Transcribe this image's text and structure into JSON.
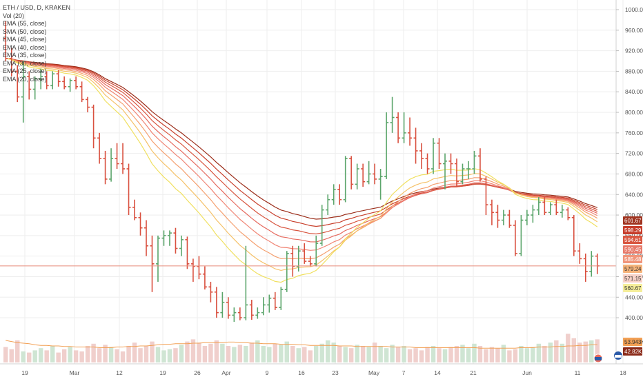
{
  "title": "ETH / USD, D, KRAKEN",
  "legend": [
    "Vol (20)",
    "EMA (55, close)",
    "SMA (50, close)",
    "EMA (45, close)",
    "EMA (40, close)",
    "EMA (35, close)",
    "EMA (30, close)",
    "EMA (25, close)",
    "EMA (20, close)"
  ],
  "colors": {
    "up": "#5ba56b",
    "down": "#d9503f",
    "vol_up": "#cfe5d3",
    "vol_down": "#f0cfcc",
    "vol_ma": "#f2a054",
    "price_line": "#e88a7a",
    "axis_text": "#555555",
    "grid": "#eeeeee"
  },
  "chart_data": {
    "type": "candlestick",
    "y_axis": {
      "min": 380,
      "max": 1000,
      "ticks": [
        400,
        440,
        480,
        520,
        560,
        600,
        640,
        680,
        720,
        760,
        800,
        840,
        880,
        920,
        960,
        1000
      ]
    },
    "x_axis": {
      "labels": [
        "19",
        "Mar",
        "12",
        "19",
        "26",
        "Apr",
        "9",
        "16",
        "23",
        "May",
        "7",
        "14",
        "21",
        "Jun",
        "11",
        "18"
      ]
    },
    "candles": [
      [
        944,
        978,
        900,
        905
      ],
      [
        905,
        925,
        870,
        880
      ],
      [
        880,
        892,
        820,
        830
      ],
      [
        830,
        900,
        780,
        870
      ],
      [
        870,
        880,
        825,
        845
      ],
      [
        845,
        870,
        825,
        865
      ],
      [
        865,
        885,
        845,
        870
      ],
      [
        870,
        880,
        845,
        852
      ],
      [
        852,
        880,
        845,
        875
      ],
      [
        875,
        882,
        850,
        860
      ],
      [
        860,
        870,
        845,
        850
      ],
      [
        850,
        866,
        840,
        862
      ],
      [
        862,
        870,
        845,
        850
      ],
      [
        850,
        860,
        820,
        825
      ],
      [
        825,
        830,
        800,
        810
      ],
      [
        810,
        815,
        730,
        750
      ],
      [
        750,
        760,
        700,
        710
      ],
      [
        710,
        725,
        660,
        670
      ],
      [
        670,
        730,
        665,
        710
      ],
      [
        710,
        740,
        690,
        700
      ],
      [
        700,
        740,
        680,
        690
      ],
      [
        690,
        700,
        600,
        615
      ],
      [
        615,
        630,
        590,
        595
      ],
      [
        595,
        605,
        560,
        575
      ],
      [
        575,
        590,
        520,
        540
      ],
      [
        540,
        560,
        450,
        505
      ],
      [
        505,
        560,
        470,
        555
      ],
      [
        555,
        570,
        540,
        560
      ],
      [
        560,
        570,
        540,
        565
      ],
      [
        565,
        575,
        525,
        535
      ],
      [
        535,
        560,
        520,
        552
      ],
      [
        552,
        558,
        495,
        505
      ],
      [
        505,
        515,
        470,
        500
      ],
      [
        500,
        520,
        475,
        485
      ],
      [
        485,
        500,
        455,
        460
      ],
      [
        460,
        470,
        430,
        450
      ],
      [
        450,
        460,
        400,
        410
      ],
      [
        410,
        450,
        400,
        430
      ],
      [
        430,
        440,
        398,
        405
      ],
      [
        405,
        420,
        392,
        410
      ],
      [
        410,
        420,
        395,
        400
      ],
      [
        400,
        540,
        395,
        425
      ],
      [
        425,
        435,
        396,
        405
      ],
      [
        405,
        420,
        398,
        410
      ],
      [
        410,
        440,
        405,
        425
      ],
      [
        425,
        445,
        410,
        438
      ],
      [
        438,
        450,
        415,
        420
      ],
      [
        420,
        460,
        415,
        455
      ],
      [
        455,
        530,
        450,
        525
      ],
      [
        525,
        540,
        480,
        500
      ],
      [
        500,
        540,
        490,
        530
      ],
      [
        530,
        545,
        505,
        510
      ],
      [
        510,
        520,
        500,
        505
      ],
      [
        505,
        560,
        500,
        545
      ],
      [
        545,
        620,
        540,
        610
      ],
      [
        610,
        640,
        600,
        630
      ],
      [
        630,
        660,
        620,
        650
      ],
      [
        650,
        660,
        620,
        630
      ],
      [
        630,
        715,
        625,
        710
      ],
      [
        710,
        715,
        650,
        660
      ],
      [
        660,
        700,
        650,
        690
      ],
      [
        690,
        700,
        655,
        665
      ],
      [
        665,
        705,
        660,
        680
      ],
      [
        680,
        700,
        660,
        670
      ],
      [
        670,
        690,
        630,
        675
      ],
      [
        675,
        800,
        670,
        780
      ],
      [
        780,
        830,
        760,
        790
      ],
      [
        790,
        800,
        740,
        750
      ],
      [
        750,
        800,
        740,
        760
      ],
      [
        760,
        790,
        735,
        750
      ],
      [
        750,
        770,
        700,
        725
      ],
      [
        725,
        740,
        690,
        710
      ],
      [
        710,
        720,
        680,
        690
      ],
      [
        690,
        750,
        680,
        740
      ],
      [
        740,
        750,
        690,
        700
      ],
      [
        700,
        720,
        650,
        705
      ],
      [
        705,
        720,
        680,
        700
      ],
      [
        700,
        710,
        655,
        665
      ],
      [
        665,
        700,
        660,
        690
      ],
      [
        690,
        705,
        670,
        690
      ],
      [
        690,
        725,
        680,
        715
      ],
      [
        715,
        730,
        665,
        670
      ],
      [
        670,
        675,
        600,
        620
      ],
      [
        620,
        630,
        580,
        605
      ],
      [
        605,
        620,
        575,
        590
      ],
      [
        590,
        610,
        580,
        600
      ],
      [
        600,
        610,
        575,
        580
      ],
      [
        580,
        590,
        520,
        525
      ],
      [
        525,
        600,
        520,
        590
      ],
      [
        590,
        610,
        580,
        600
      ],
      [
        600,
        620,
        585,
        610
      ],
      [
        610,
        635,
        600,
        625
      ],
      [
        625,
        635,
        600,
        605
      ],
      [
        605,
        625,
        600,
        620
      ],
      [
        620,
        630,
        600,
        605
      ],
      [
        605,
        620,
        595,
        610
      ],
      [
        610,
        615,
        590,
        595
      ],
      [
        595,
        600,
        520,
        530
      ],
      [
        530,
        545,
        505,
        515
      ],
      [
        515,
        525,
        470,
        490
      ],
      [
        490,
        530,
        480,
        520
      ],
      [
        520,
        525,
        485,
        501
      ]
    ],
    "volume": {
      "ymax": 100,
      "values": [
        28,
        24,
        40,
        20,
        18,
        22,
        26,
        22,
        30,
        18,
        24,
        28,
        22,
        20,
        30,
        34,
        26,
        32,
        28,
        24,
        20,
        30,
        36,
        26,
        30,
        38,
        28,
        22,
        24,
        26,
        32,
        38,
        42,
        36,
        30,
        34,
        40,
        34,
        30,
        28,
        32,
        30,
        36,
        40,
        30,
        28,
        34,
        32,
        38,
        30,
        26,
        28,
        22,
        30,
        34,
        40,
        36,
        30,
        28,
        26,
        32,
        30,
        28,
        36,
        30,
        26,
        32,
        28,
        30,
        24,
        26,
        22,
        28,
        30,
        26,
        24,
        28,
        30,
        32,
        26,
        34,
        30,
        24,
        28,
        26,
        32,
        22,
        24,
        30,
        26,
        28,
        34,
        30,
        36,
        40,
        34,
        52,
        44,
        36,
        38,
        40,
        42
      ],
      "ma": [
        40,
        38,
        36,
        35,
        34,
        32,
        31,
        31,
        30,
        30,
        29,
        29,
        28,
        28,
        28,
        28,
        27,
        27,
        27,
        28,
        28,
        29,
        29,
        30,
        30,
        31,
        32,
        33,
        33,
        34,
        34,
        34,
        35,
        35,
        36,
        36,
        36,
        36,
        37,
        37,
        36,
        36,
        35,
        35,
        34,
        34,
        34,
        33,
        33,
        33,
        32,
        32,
        31,
        31,
        31,
        31,
        31,
        30,
        30,
        30,
        29,
        29,
        29,
        29,
        29,
        29,
        28,
        28,
        28,
        28,
        27,
        27,
        27,
        27,
        27,
        27,
        27,
        27,
        27,
        27,
        27,
        26,
        26,
        26,
        26,
        26,
        26,
        26,
        27,
        27,
        27,
        28,
        28,
        28,
        29,
        29,
        30,
        30,
        31,
        31,
        32,
        32
      ]
    },
    "ema_series": [
      {
        "period": 20,
        "color": "#f0e060"
      },
      {
        "period": 25,
        "color": "#f5c168"
      },
      {
        "period": 30,
        "color": "#f5a070"
      },
      {
        "period": 35,
        "color": "#f08575"
      },
      {
        "period": 40,
        "color": "#e66a5f"
      },
      {
        "period": 45,
        "color": "#d8553f"
      },
      {
        "period": 50,
        "color": "#c8402c"
      },
      {
        "period": 55,
        "color": "#9b2d1a"
      }
    ],
    "price_labels": [
      {
        "value": "601.67",
        "bg": "#a03420",
        "fg": "#ffffff"
      },
      {
        "value": "598.29",
        "bg": "#c63c2a",
        "fg": "#ffffff"
      },
      {
        "value": "594.61",
        "bg": "#d8553f",
        "fg": "#ffffff"
      },
      {
        "value": "590.45",
        "bg": "#e87a6a",
        "fg": "#ffffff"
      },
      {
        "value": "585.48",
        "bg": "#f0957a",
        "fg": "#ffffff"
      },
      {
        "value": "579.24",
        "bg": "#f5b37a",
        "fg": "#333333"
      },
      {
        "value": "571.15",
        "bg": "#f8d2c8",
        "fg": "#333333"
      },
      {
        "value": "560.67",
        "bg": "#f5ee9a",
        "fg": "#333333"
      },
      {
        "value": "53.943K",
        "bg": "#f2a054",
        "fg": "#333333"
      },
      {
        "value": "42.82K",
        "bg": "#8b2b1a",
        "fg": "#ffffff"
      }
    ]
  }
}
